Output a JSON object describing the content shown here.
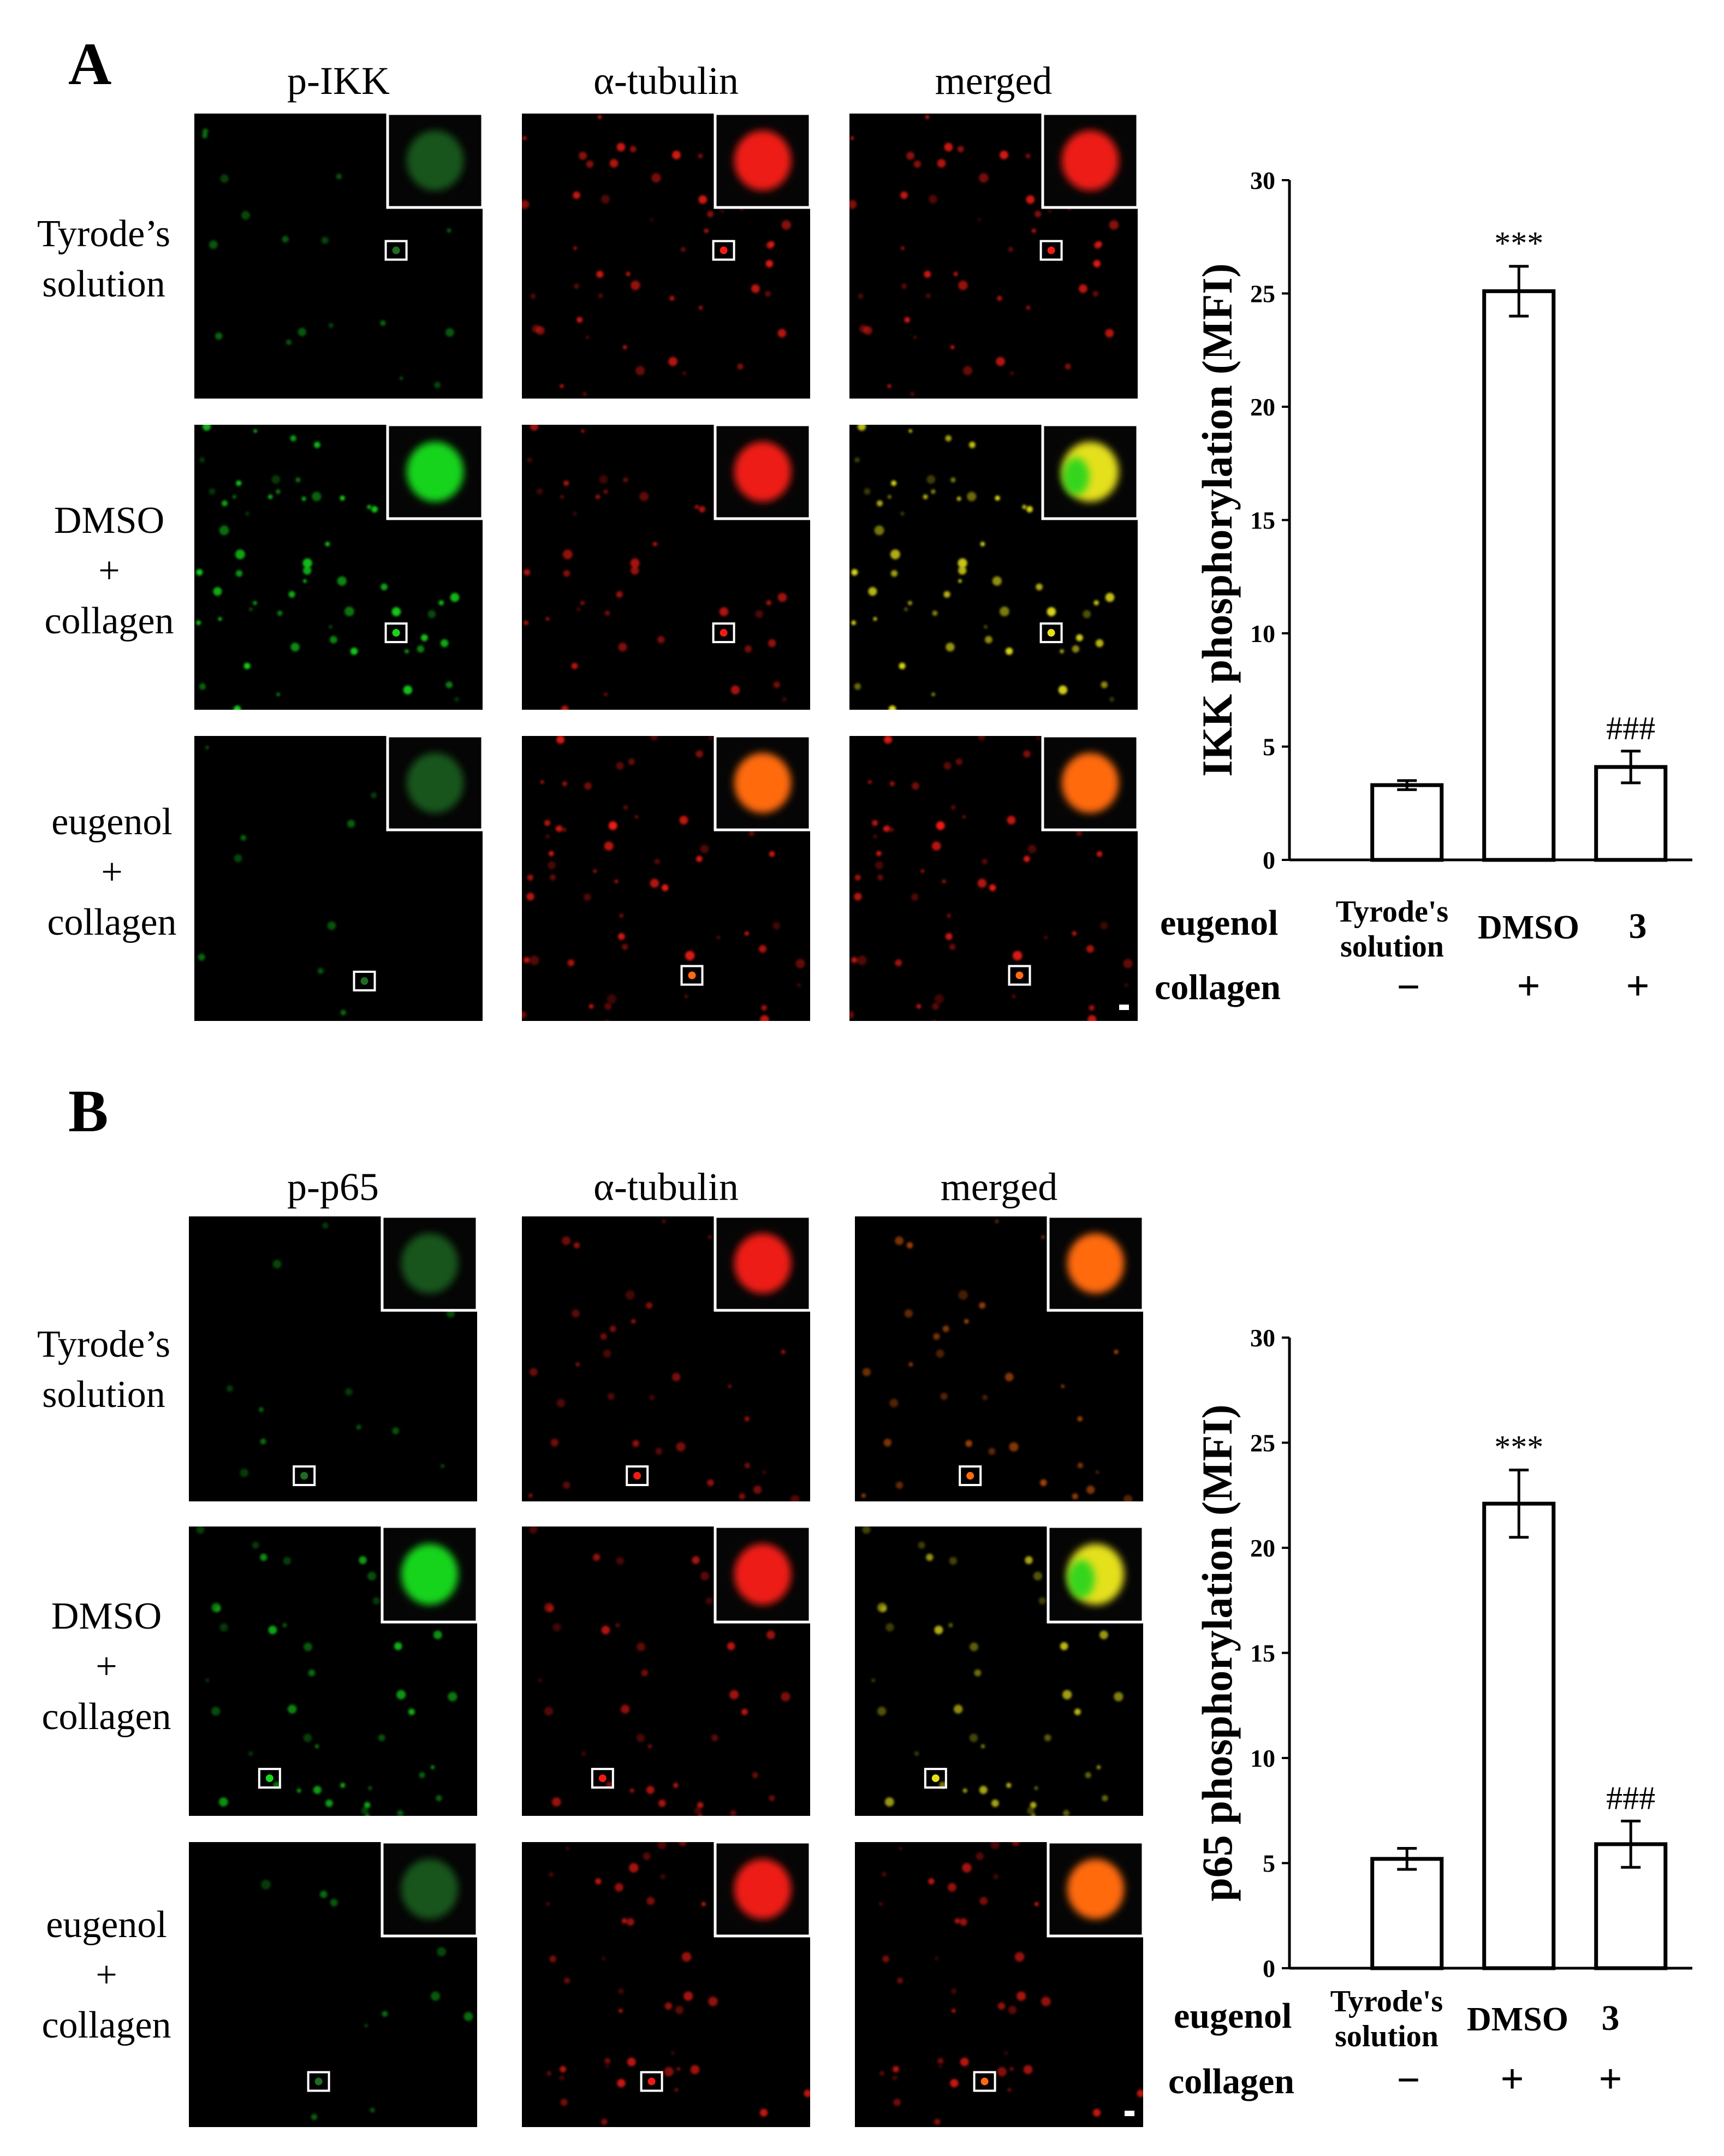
{
  "panels": [
    {
      "letter": "A",
      "columns": [
        "p-IKK",
        "α-tubulin",
        "merged"
      ],
      "rows": [
        [
          "Tyrode’s",
          "solution"
        ],
        [
          "DMSO",
          "+",
          "collagen"
        ],
        [
          "eugenol",
          "+",
          "collagen"
        ]
      ]
    },
    {
      "letter": "B",
      "columns": [
        "p-p65",
        "α-tubulin",
        "merged"
      ],
      "rows": [
        [
          "Tyrode’s",
          "solution"
        ],
        [
          "DMSO",
          "+",
          "collagen"
        ],
        [
          "eugenol",
          "+",
          "collagen"
        ]
      ]
    }
  ],
  "colors": {
    "green": "#19d41a",
    "red": "#ee1c12",
    "yellow": "#e5e01a",
    "orange": "#ff6a10"
  },
  "condition_table": {
    "row1_label": "eugenol",
    "row2_label": "collagen",
    "groups": [
      {
        "eugenol": "Tyrode's solution",
        "eugenol_lines": [
          "Tyrode's",
          "solution"
        ],
        "collagen": "−"
      },
      {
        "eugenol": "DMSO",
        "collagen": "+"
      },
      {
        "eugenol": "3",
        "collagen": "+"
      }
    ]
  },
  "chart_data": [
    {
      "type": "bar",
      "panel": "A",
      "categories": [
        "Tyrode's solution",
        "DMSO",
        "3"
      ],
      "values": [
        3.3,
        25.1,
        4.1
      ],
      "errors": [
        0.2,
        1.1,
        0.7
      ],
      "annotations": [
        "",
        "***",
        "###"
      ],
      "ylabel": "IKK phosphorylation (MFI)",
      "xlabel": "",
      "ylim": [
        0,
        30
      ],
      "yticks": [
        0,
        5,
        10,
        15,
        20,
        25,
        30
      ]
    },
    {
      "type": "bar",
      "panel": "B",
      "categories": [
        "Tyrode's solution",
        "DMSO",
        "3"
      ],
      "values": [
        5.2,
        22.1,
        5.9
      ],
      "errors": [
        0.5,
        1.6,
        1.1
      ],
      "annotations": [
        "",
        "***",
        "###"
      ],
      "ylabel": "p65 phosphorylation (MFI)",
      "xlabel": "",
      "ylim": [
        0,
        30
      ],
      "yticks": [
        0,
        5,
        10,
        15,
        20,
        25,
        30
      ]
    }
  ]
}
